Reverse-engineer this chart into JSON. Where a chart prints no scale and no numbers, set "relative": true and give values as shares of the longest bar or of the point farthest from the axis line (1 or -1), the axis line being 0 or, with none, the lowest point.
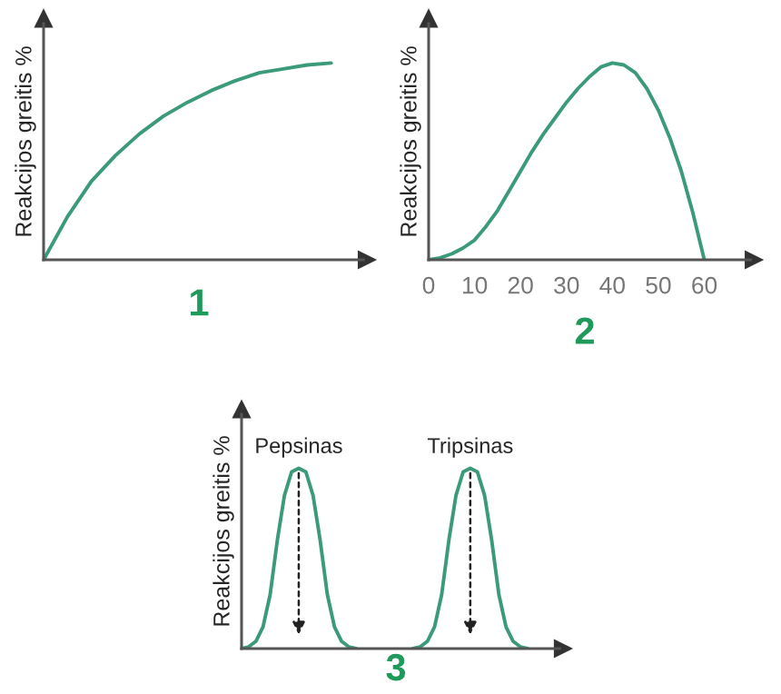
{
  "chart_data": [
    {
      "type": "line",
      "title": "1",
      "ylabel": "Reakcijos greitis %",
      "relative": true,
      "tick_labels": false,
      "categories": [
        null,
        null,
        null,
        null,
        null,
        null,
        null,
        null,
        null,
        null,
        null,
        null,
        null
      ],
      "series": [
        {
          "color": "#3a9a7a",
          "values": [
            0,
            0.22,
            0.4,
            0.53,
            0.64,
            0.73,
            0.8,
            0.86,
            0.91,
            0.95,
            0.97,
            0.99,
            1.0
          ]
        }
      ]
    },
    {
      "type": "line",
      "title": "2",
      "ylabel": "Reakcijos greitis %",
      "relative": true,
      "tick_labels": "x",
      "x": [
        0,
        2.5,
        5,
        7.5,
        10,
        12.5,
        15,
        17.5,
        20,
        22.5,
        25,
        27.5,
        30,
        32.5,
        35,
        37.5,
        40,
        42.5,
        45,
        47.5,
        50,
        52.5,
        55,
        57.5,
        60
      ],
      "xlim": [
        0,
        68
      ],
      "xticks": [
        0,
        10,
        20,
        30,
        40,
        50,
        60
      ],
      "series": [
        {
          "color": "#3a9a7a",
          "values": [
            0,
            0.01,
            0.03,
            0.06,
            0.1,
            0.17,
            0.25,
            0.35,
            0.45,
            0.55,
            0.64,
            0.72,
            0.8,
            0.87,
            0.93,
            0.98,
            1.0,
            0.99,
            0.95,
            0.87,
            0.76,
            0.62,
            0.45,
            0.24,
            0
          ]
        }
      ]
    },
    {
      "type": "line",
      "title": "3",
      "ylabel": "Reakcijos greitis %",
      "relative": true,
      "tick_labels": false,
      "categories": [
        null,
        null,
        null,
        null,
        null,
        null,
        null,
        null,
        null,
        null,
        null,
        null,
        null,
        null,
        null,
        null,
        null,
        null,
        null,
        null,
        null,
        null,
        null,
        null,
        null,
        null,
        null,
        null,
        null,
        null,
        null,
        null,
        null,
        null,
        null,
        null,
        null,
        null,
        null,
        null,
        null
      ],
      "series": [
        {
          "name": "Pepsinas",
          "color": "#3a9a7a",
          "values": [
            0,
            0.01,
            0.04,
            0.12,
            0.3,
            0.6,
            0.85,
            0.98,
            1.0,
            0.98,
            0.85,
            0.6,
            0.3,
            0.12,
            0.04,
            0.01,
            0,
            null,
            null,
            null,
            null,
            null,
            null,
            null,
            null,
            null,
            null,
            null,
            null,
            null,
            null,
            null,
            null,
            null,
            null,
            null,
            null,
            null,
            null,
            null,
            null
          ]
        },
        {
          "name": "Tripsinas",
          "color": "#3a9a7a",
          "values": [
            null,
            null,
            null,
            null,
            null,
            null,
            null,
            null,
            null,
            null,
            null,
            null,
            null,
            null,
            null,
            null,
            null,
            null,
            null,
            null,
            null,
            null,
            null,
            null,
            0,
            0.01,
            0.04,
            0.12,
            0.3,
            0.6,
            0.85,
            0.98,
            1.0,
            0.98,
            0.85,
            0.6,
            0.3,
            0.12,
            0.04,
            0.01,
            0
          ]
        }
      ]
    }
  ]
}
